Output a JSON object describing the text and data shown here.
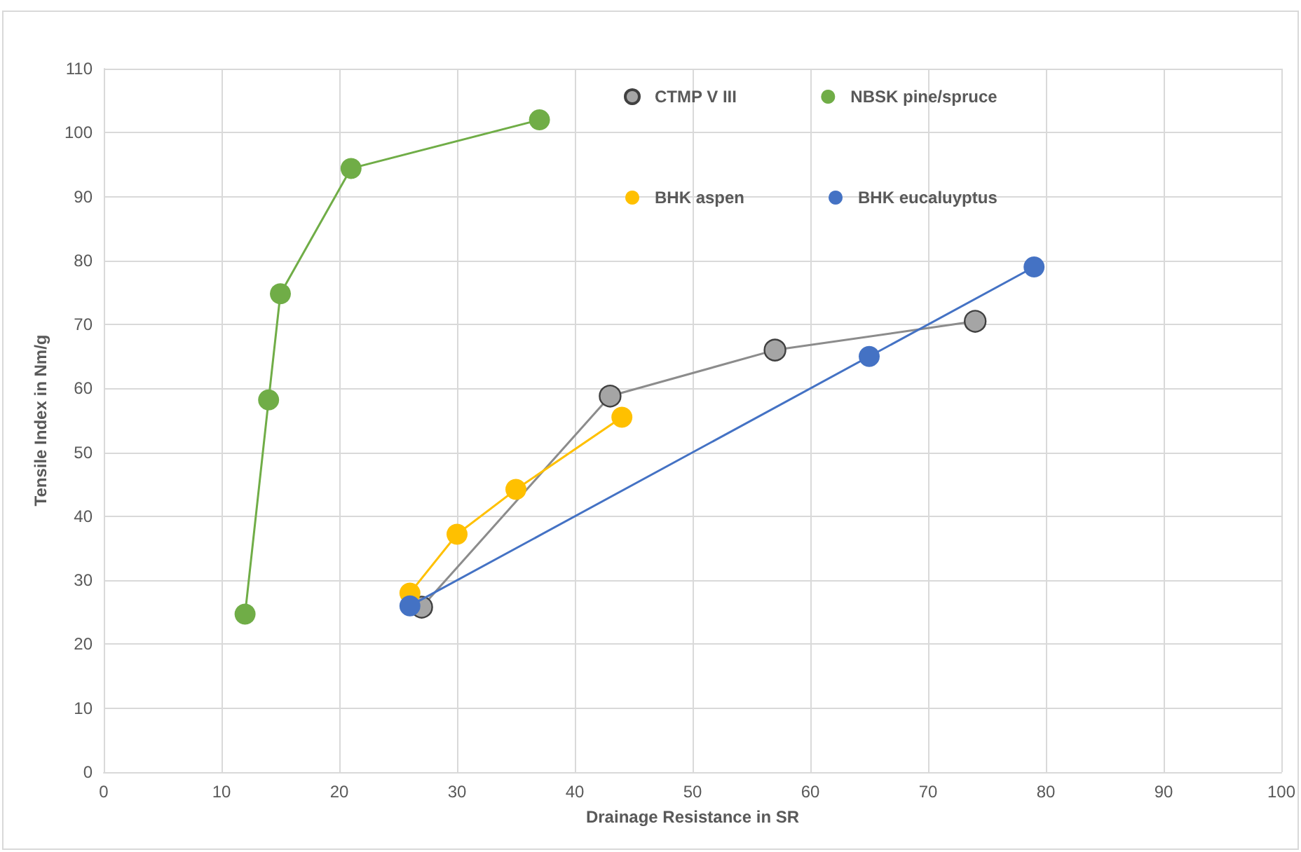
{
  "chart_data": {
    "type": "line",
    "xlabel": "Drainage Resistance in SR",
    "ylabel": "Tensile Index in Nm/g",
    "xlim": [
      0,
      100
    ],
    "xticks": [
      0,
      10,
      20,
      30,
      40,
      50,
      60,
      70,
      80,
      90,
      100
    ],
    "ylim": [
      0,
      110
    ],
    "yticks": [
      0,
      10,
      20,
      30,
      40,
      50,
      60,
      70,
      80,
      90,
      100,
      110
    ],
    "grid": true,
    "legend": "top right",
    "marker": "circle",
    "line_style": "solid",
    "series": [
      {
        "name": "CTMP V III",
        "color": "#a5a5a5",
        "x": [
          27,
          43,
          57,
          74
        ],
        "values": [
          25.8,
          58.8,
          66,
          70.5
        ]
      },
      {
        "name": "NBSK pine/spruce",
        "color": "#70ad47",
        "x": [
          12,
          14,
          15,
          21,
          37
        ],
        "values": [
          24.7,
          58.2,
          74.8,
          94.4,
          102
        ]
      },
      {
        "name": "BHK aspen",
        "color": "#ffc000",
        "x": [
          26,
          30,
          35,
          44
        ],
        "values": [
          28,
          37.2,
          44.2,
          55.5
        ]
      },
      {
        "name": "BHK eucaluyptus",
        "color": "#4472c4",
        "x": [
          26,
          65,
          79
        ],
        "values": [
          26,
          65,
          79
        ]
      }
    ]
  }
}
